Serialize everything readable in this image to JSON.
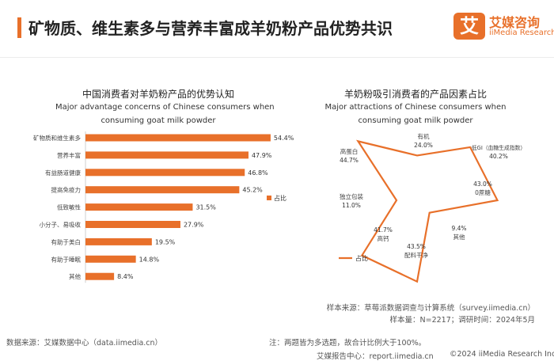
{
  "header": {
    "title": "矿物质、维生素多与营养丰富成羊奶粉产品优势共识",
    "logo_mark": "艾",
    "logo_cn": "艾媒咨询",
    "logo_en": "iiMedia Research"
  },
  "colors": {
    "accent": "#e8702a",
    "bar": "#e8702a"
  },
  "chart_data": [
    {
      "type": "bar",
      "orientation": "horizontal",
      "title": "中国消费者对羊奶粉产品的优势认知",
      "subtitle_line1": "Major advantage concerns of Chinese consumers when",
      "subtitle_line2": "consuming goat milk powder",
      "legend": "占比",
      "categories": [
        "矿物质和维生素多",
        "营养丰富",
        "有益肠道健康",
        "提高免疫力",
        "低致敏性",
        "小分子、易吸收",
        "有助于美白",
        "有助于睡眠",
        "其他"
      ],
      "values": [
        54.4,
        47.9,
        46.8,
        45.2,
        31.5,
        27.9,
        19.5,
        14.8,
        8.4
      ],
      "labels": [
        "54.4%",
        "47.9%",
        "46.8%",
        "45.2%",
        "31.5%",
        "27.9%",
        "19.5%",
        "14.8%",
        "8.4%"
      ],
      "xlim": [
        0,
        60
      ]
    },
    {
      "type": "radar",
      "title": "羊奶粉吸引消费者的产品因素占比",
      "subtitle_line1": "Major attractions of Chinese consumers when",
      "subtitle_line2": "consuming goat milk powder",
      "legend": "占比",
      "categories": [
        "有机",
        "低GI（血糖生成指数）",
        "0蔗糖",
        "其他",
        "配料干净",
        "高钙",
        "独立包装",
        "高蛋白"
      ],
      "values": [
        24.0,
        40.2,
        43.0,
        9.4,
        43.5,
        41.7,
        11.0,
        44.7
      ],
      "labels": [
        "24.0%",
        "40.2%",
        "43.0%",
        "9.4%",
        "43.5%",
        "41.7%",
        "11.0%",
        "44.7%"
      ],
      "max": 50
    }
  ],
  "footer": {
    "source_left": "数据来源：艾媒数据中心（data.iimedia.cn）",
    "sample_source": "样本来源：草莓派数据调查与计算系统（survey.iimedia.cn）",
    "sample_info": "样本量：N=2217；调研时间：2024年5月",
    "note": "注：两题皆为多选题，故合计比例大于100%。",
    "report_center": "艾媒报告中心：report.iimedia.cn",
    "copyright": "©2024  iiMedia Research  Inc"
  }
}
